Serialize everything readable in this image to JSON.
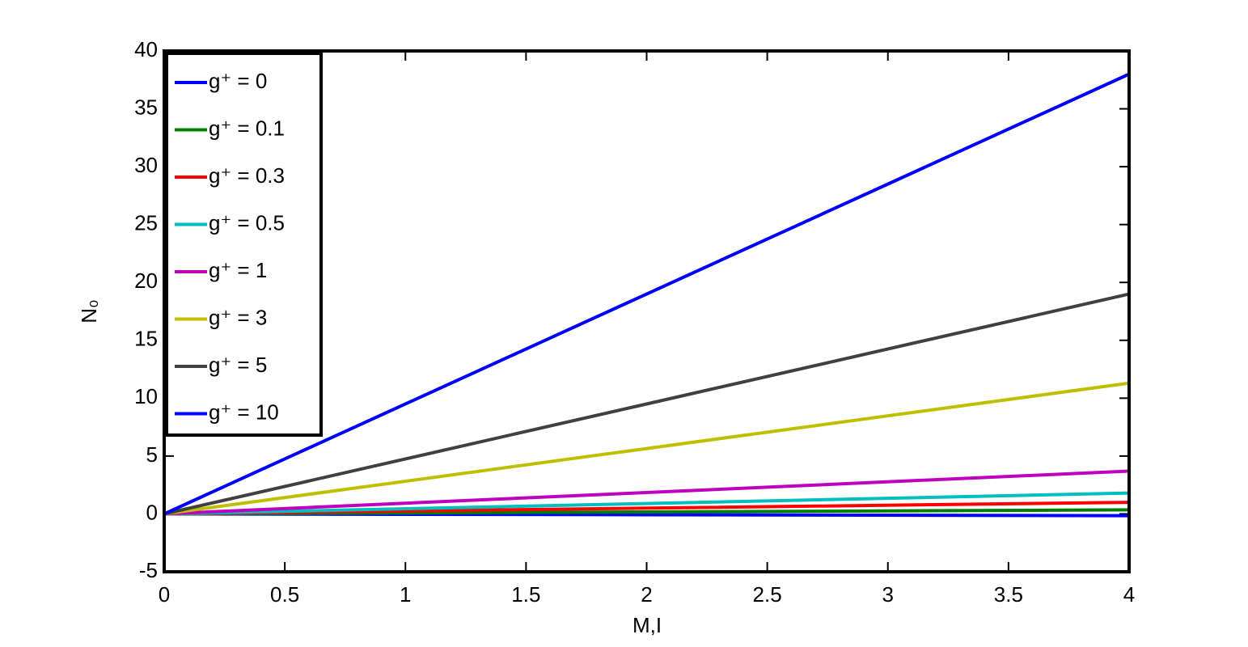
{
  "chart_data": {
    "type": "line",
    "x_label": "M,I",
    "y_label": "N₀",
    "x": [
      0,
      2,
      4
    ],
    "series": [
      {
        "name": "g⁺ = 0",
        "color": "#0000ff",
        "values": [
          0,
          -0.07,
          -0.15
        ]
      },
      {
        "name": "g⁺ = 0.1",
        "color": "#008000",
        "values": [
          0,
          0.17,
          0.35
        ]
      },
      {
        "name": "g⁺ = 0.3",
        "color": "#ff0000",
        "values": [
          0,
          0.5,
          1.0
        ]
      },
      {
        "name": "g⁺ = 0.5",
        "color": "#00bfbf",
        "values": [
          0,
          0.9,
          1.8
        ]
      },
      {
        "name": "g⁺ = 1",
        "color": "#bf00bf",
        "values": [
          0,
          1.85,
          3.7
        ]
      },
      {
        "name": "g⁺ = 3",
        "color": "#bfbf00",
        "values": [
          0,
          5.65,
          11.3
        ]
      },
      {
        "name": "g⁺ = 5",
        "color": "#404040",
        "values": [
          0,
          9.5,
          19
        ]
      },
      {
        "name": "g⁺ = 10",
        "color": "#0000ff",
        "values": [
          0,
          19,
          38
        ]
      }
    ],
    "xlim": [
      0,
      4
    ],
    "xticks": [
      0,
      0.5,
      1,
      1.5,
      2,
      2.5,
      3,
      3.5,
      4
    ],
    "ylim": [
      -5,
      40
    ],
    "yticks": [
      -5,
      0,
      5,
      10,
      15,
      20,
      25,
      30,
      35,
      40
    ],
    "legend": "upper-left"
  }
}
